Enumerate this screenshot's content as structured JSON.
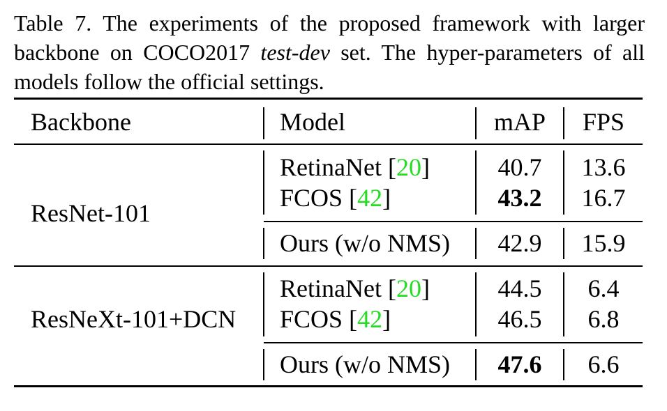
{
  "caption": {
    "prefix": "Table 7. The experiments of the proposed framework with larger backbone on COCO2017 ",
    "emph": "test-dev",
    "suffix": " set. The hyper-parameters of all models follow the official settings."
  },
  "headers": {
    "backbone": "Backbone",
    "model": "Model",
    "map": "mAP",
    "fps": "FPS"
  },
  "groups": [
    {
      "backbone": "ResNet-101",
      "rows": [
        {
          "model": "RetinaNet",
          "cite": "20",
          "map": "40.7",
          "fps": "13.6",
          "map_bold": false
        },
        {
          "model": "FCOS",
          "cite": "42",
          "map": "43.2",
          "fps": "16.7",
          "map_bold": true
        },
        {
          "model": "Ours (w/o NMS)",
          "cite": "",
          "map": "42.9",
          "fps": "15.9",
          "map_bold": false
        }
      ]
    },
    {
      "backbone": "ResNeXt-101+DCN",
      "rows": [
        {
          "model": "RetinaNet",
          "cite": "20",
          "map": "44.5",
          "fps": "6.4",
          "map_bold": false
        },
        {
          "model": "FCOS",
          "cite": "42",
          "map": "46.5",
          "fps": "6.8",
          "map_bold": false
        },
        {
          "model": "Ours (w/o NMS)",
          "cite": "",
          "map": "47.6",
          "fps": "6.6",
          "map_bold": true
        }
      ]
    }
  ]
}
